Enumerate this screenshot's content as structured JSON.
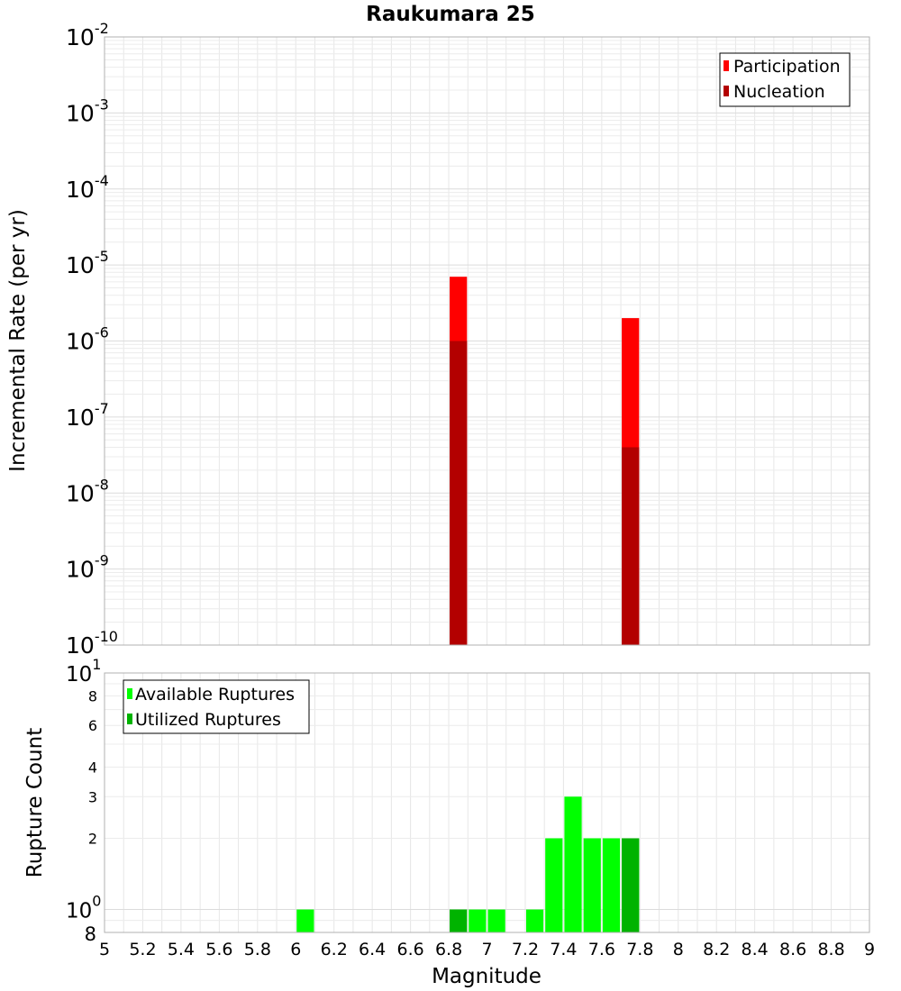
{
  "title": "Raukumara 25",
  "colors": {
    "participation": "#ff0000",
    "nucleation": "#b30000",
    "available": "#00ff00",
    "utilized": "#00b300",
    "grid": "#e6e6e6",
    "axis_border": "#b0b0b0"
  },
  "chart_data": [
    {
      "type": "bar",
      "panel": "top",
      "ylabel": "Incremental Rate (per yr)",
      "yscale": "log",
      "ylim": [
        1e-10,
        0.01
      ],
      "xlim": [
        5,
        9
      ],
      "bin_width": 0.1,
      "y_ticks": [
        {
          "value": 0.01,
          "base": "10",
          "exp": "-2"
        },
        {
          "value": 0.001,
          "base": "10",
          "exp": "-3"
        },
        {
          "value": 0.0001,
          "base": "10",
          "exp": "-4"
        },
        {
          "value": 1e-05,
          "base": "10",
          "exp": "-5"
        },
        {
          "value": 1e-06,
          "base": "10",
          "exp": "-6"
        },
        {
          "value": 1e-07,
          "base": "10",
          "exp": "-7"
        },
        {
          "value": 1e-08,
          "base": "10",
          "exp": "-8"
        },
        {
          "value": 1e-09,
          "base": "10",
          "exp": "-9"
        },
        {
          "value": 1e-10,
          "base": "10",
          "exp": "-10"
        }
      ],
      "legend": {
        "position": "top-right",
        "items": [
          "Participation",
          "Nucleation"
        ]
      },
      "series": [
        {
          "name": "Participation",
          "x": [
            6.85,
            7.75
          ],
          "values": [
            7e-06,
            2e-06
          ]
        },
        {
          "name": "Nucleation",
          "x": [
            6.85,
            7.75
          ],
          "values": [
            1e-06,
            4e-08
          ]
        }
      ]
    },
    {
      "type": "bar",
      "panel": "bottom",
      "xlabel": "Magnitude",
      "ylabel": "Rupture Count",
      "yscale": "log",
      "ylim": [
        0.8,
        10
      ],
      "xlim": [
        5,
        9
      ],
      "bin_width": 0.1,
      "x_ticks": [
        "5",
        "5.2",
        "5.4",
        "5.6",
        "5.8",
        "6",
        "6.2",
        "6.4",
        "6.6",
        "6.8",
        "7",
        "7.2",
        "7.4",
        "7.6",
        "7.8",
        "8",
        "8.2",
        "8.4",
        "8.6",
        "8.8",
        "9"
      ],
      "y_ticks": [
        {
          "value": 10,
          "base": "10",
          "exp": "1"
        },
        {
          "value": 8,
          "label": "8"
        },
        {
          "value": 6,
          "label": "6"
        },
        {
          "value": 4,
          "label": "4"
        },
        {
          "value": 3,
          "label": "3"
        },
        {
          "value": 2,
          "label": "2"
        },
        {
          "value": 1,
          "base": "10",
          "exp": "0"
        },
        {
          "value": 0.8,
          "label": "8"
        }
      ],
      "legend": {
        "position": "top-left",
        "items": [
          "Available Ruptures",
          "Utilized Ruptures"
        ]
      },
      "series": [
        {
          "name": "Available Ruptures",
          "x": [
            6.05,
            6.85,
            6.95,
            7.05,
            7.25,
            7.35,
            7.45,
            7.55,
            7.65,
            7.75
          ],
          "values": [
            1,
            1,
            1,
            1,
            1,
            2,
            3,
            2,
            2,
            2
          ]
        },
        {
          "name": "Utilized Ruptures",
          "x": [
            6.85,
            7.75
          ],
          "values": [
            1,
            2
          ]
        }
      ]
    }
  ]
}
